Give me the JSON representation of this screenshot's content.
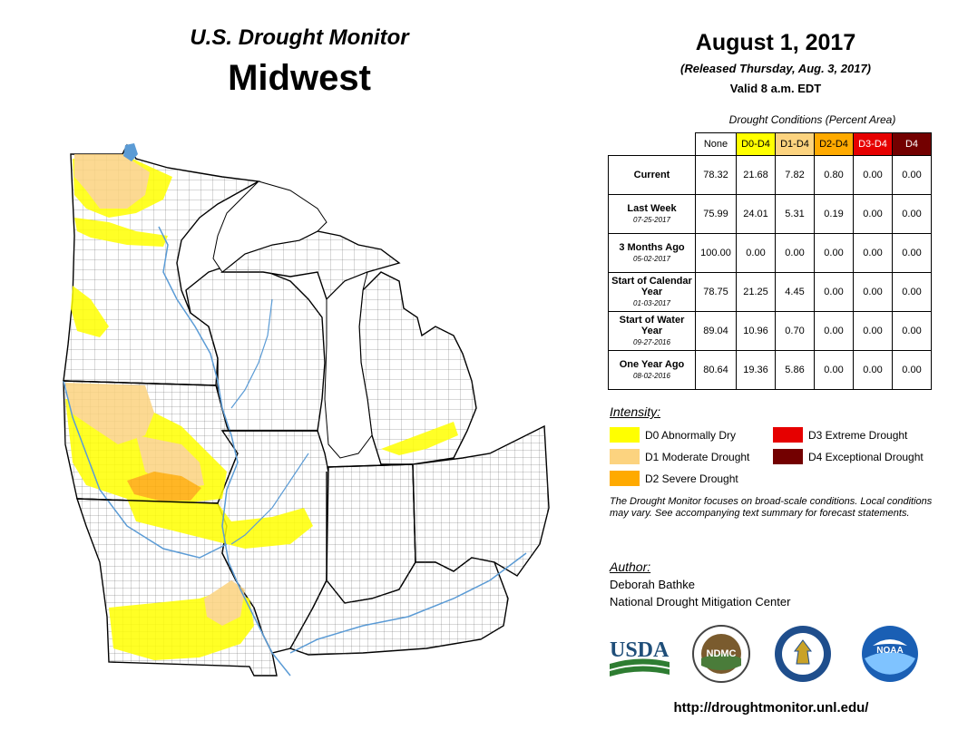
{
  "header": {
    "subtitle": "U.S. Drought Monitor",
    "title": "Midwest"
  },
  "date": {
    "main": "August 1, 2017",
    "released": "(Released Thursday, Aug. 3, 2017)",
    "valid": "Valid 8 a.m. EDT"
  },
  "table": {
    "caption": "Drought Conditions (Percent Area)",
    "columns": [
      {
        "label": "None",
        "bg": "#ffffff",
        "fg": "#000000"
      },
      {
        "label": "D0-D4",
        "bg": "#ffff00",
        "fg": "#000000"
      },
      {
        "label": "D1-D4",
        "bg": "#fcd37f",
        "fg": "#000000"
      },
      {
        "label": "D2-D4",
        "bg": "#ffaa00",
        "fg": "#000000"
      },
      {
        "label": "D3-D4",
        "bg": "#e60000",
        "fg": "#ffffff"
      },
      {
        "label": "D4",
        "bg": "#730000",
        "fg": "#ffffff"
      }
    ],
    "rows": [
      {
        "label": "Current",
        "date": "",
        "values": [
          "78.32",
          "21.68",
          "7.82",
          "0.80",
          "0.00",
          "0.00"
        ]
      },
      {
        "label": "Last Week",
        "date": "07-25-2017",
        "values": [
          "75.99",
          "24.01",
          "5.31",
          "0.19",
          "0.00",
          "0.00"
        ]
      },
      {
        "label": "3 Months Ago",
        "date": "05-02-2017",
        "values": [
          "100.00",
          "0.00",
          "0.00",
          "0.00",
          "0.00",
          "0.00"
        ]
      },
      {
        "label": "Start of Calendar Year",
        "date": "01-03-2017",
        "values": [
          "78.75",
          "21.25",
          "4.45",
          "0.00",
          "0.00",
          "0.00"
        ]
      },
      {
        "label": "Start of Water Year",
        "date": "09-27-2016",
        "values": [
          "89.04",
          "10.96",
          "0.70",
          "0.00",
          "0.00",
          "0.00"
        ]
      },
      {
        "label": "One Year Ago",
        "date": "08-02-2016",
        "values": [
          "80.64",
          "19.36",
          "5.86",
          "0.00",
          "0.00",
          "0.00"
        ]
      }
    ]
  },
  "legend": {
    "title": "Intensity:",
    "items": [
      {
        "label": "D0 Abnormally Dry",
        "color": "#ffff00"
      },
      {
        "label": "D1 Moderate Drought",
        "color": "#fcd37f"
      },
      {
        "label": "D2 Severe Drought",
        "color": "#ffaa00"
      },
      {
        "label": "D3 Extreme Drought",
        "color": "#e60000"
      },
      {
        "label": "D4 Exceptional Drought",
        "color": "#730000"
      }
    ]
  },
  "note": "The Drought Monitor focuses on broad-scale conditions. Local conditions may vary. See accompanying text summary for forecast statements.",
  "author": {
    "title": "Author:",
    "name": "Deborah Bathke",
    "org": "National Drought Mitigation Center"
  },
  "logos": {
    "usda": "USDA",
    "ndmc": "NDMC",
    "noaa": "NOAA"
  },
  "url": "http://droughtmonitor.unl.edu/",
  "map": {
    "water_color": "#5b9bd5",
    "d0": "#ffff00",
    "d1": "#fcd37f",
    "d2": "#ffaa00"
  }
}
